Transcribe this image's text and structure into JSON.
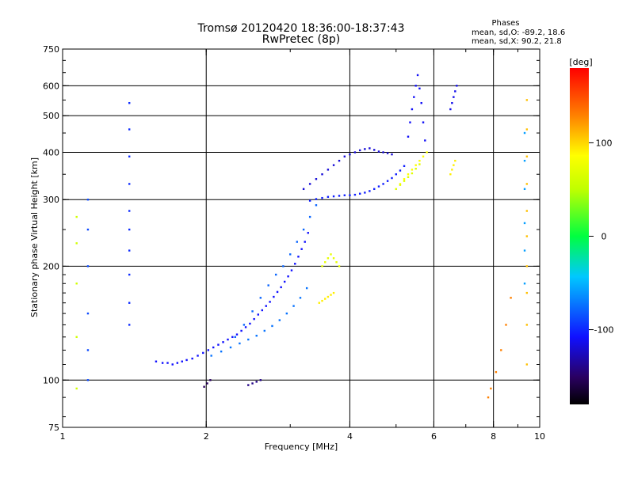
{
  "chart_data": {
    "type": "scatter",
    "title": "Tromsø 20120420 18:36:00-18:37:43",
    "subtitle": "RwPretec (8p)",
    "stats": {
      "heading": "Phases",
      "line_o": "mean, sd,O: -89.2, 18.6",
      "line_x": "mean, sd,X:  90.2, 21.8"
    },
    "xlabel": "Frequency [MHz]",
    "ylabel": "Stationary phase Virtual Height [km]",
    "x_scale": "log",
    "y_scale": "log",
    "xlim": [
      1,
      10
    ],
    "ylim": [
      75,
      750
    ],
    "x_ticks": [
      {
        "value": 1,
        "label": "1"
      },
      {
        "value": 2,
        "label": "2"
      },
      {
        "value": 4,
        "label": "4"
      },
      {
        "value": 6,
        "label": "6"
      },
      {
        "value": 8,
        "label": "8"
      },
      {
        "value": 10,
        "label": "10"
      }
    ],
    "y_ticks": [
      {
        "value": 75,
        "label": "75"
      },
      {
        "value": 100,
        "label": "100"
      },
      {
        "value": 200,
        "label": "200"
      },
      {
        "value": 300,
        "label": "300"
      },
      {
        "value": 400,
        "label": "400"
      },
      {
        "value": 500,
        "label": "500"
      },
      {
        "value": 600,
        "label": "600"
      },
      {
        "value": 750,
        "label": "750"
      }
    ],
    "grid_x": [
      2,
      4,
      6,
      8
    ],
    "grid_y": [
      100,
      200,
      300,
      400,
      500,
      600
    ],
    "grid": true,
    "colorbar": {
      "label": "[deg]",
      "range": [
        -180,
        180
      ],
      "ticks": [
        {
          "value": 100,
          "label": "100"
        },
        {
          "value": 0,
          "label": "0"
        },
        {
          "value": -100,
          "label": "-100"
        }
      ]
    },
    "series": [
      {
        "x": [
          1.57,
          1.62,
          1.66,
          1.7,
          1.74,
          1.78,
          1.82,
          1.87,
          1.92,
          1.97,
          2.02,
          2.07,
          2.12,
          2.17,
          2.22,
          2.27,
          2.32,
          2.37,
          2.42,
          2.47,
          2.52,
          2.57,
          2.62,
          2.67,
          2.72,
          2.77,
          2.82,
          2.87,
          2.92,
          2.97,
          3.02,
          3.07,
          3.12,
          3.17,
          3.22,
          3.27
        ],
        "y": [
          112,
          111,
          111,
          110,
          111,
          112,
          113,
          114,
          116,
          118,
          120,
          122,
          124,
          126,
          128,
          130,
          132,
          135,
          138,
          141,
          145,
          149,
          153,
          157,
          161,
          166,
          171,
          176,
          182,
          188,
          195,
          203,
          212,
          222,
          232,
          245
        ],
        "phase": -110
      },
      {
        "x": [
          2.05,
          2.15,
          2.25,
          2.35,
          2.45,
          2.55,
          2.65,
          2.75,
          2.85,
          2.95,
          3.05,
          3.15,
          3.25
        ],
        "y": [
          116,
          119,
          122,
          125,
          128,
          131,
          135,
          139,
          144,
          150,
          157,
          165,
          175
        ],
        "phase": -75
      },
      {
        "x": [
          2.3,
          2.4,
          2.5,
          2.6,
          2.7,
          2.8,
          2.9,
          3.0,
          3.1,
          3.2,
          3.3,
          3.4
        ],
        "y": [
          130,
          140,
          152,
          165,
          178,
          190,
          200,
          215,
          232,
          250,
          270,
          290
        ],
        "phase": -80
      },
      {
        "x": [
          3.3,
          3.4,
          3.5,
          3.6,
          3.7,
          3.8,
          3.9,
          4.0,
          4.1,
          4.2,
          4.3,
          4.4,
          4.5,
          4.6,
          4.7,
          4.8,
          4.9,
          5.0,
          5.1,
          5.2
        ],
        "y": [
          298,
          301,
          303,
          305,
          306,
          307,
          308,
          308,
          309,
          311,
          313,
          316,
          320,
          325,
          330,
          336,
          342,
          350,
          358,
          368
        ],
        "phase": -105
      },
      {
        "x": [
          3.2,
          3.3,
          3.4,
          3.5,
          3.6,
          3.7,
          3.8,
          3.9,
          4.0,
          4.1,
          4.2,
          4.3,
          4.4,
          4.5,
          4.6,
          4.7,
          4.8,
          4.9
        ],
        "y": [
          320,
          330,
          340,
          350,
          360,
          370,
          380,
          390,
          395,
          400,
          405,
          408,
          410,
          406,
          402,
          400,
          398,
          395
        ],
        "phase": -120
      },
      {
        "x": [
          5.3,
          5.35,
          5.4,
          5.45,
          5.5,
          5.55,
          5.6,
          5.65,
          5.7,
          5.75
        ],
        "y": [
          440,
          480,
          520,
          560,
          600,
          640,
          590,
          540,
          480,
          430
        ],
        "phase": -112
      },
      {
        "x": [
          5.1,
          5.2,
          5.3,
          5.4,
          5.5,
          5.6,
          5.7,
          5.8
        ],
        "y": [
          330,
          340,
          350,
          360,
          370,
          380,
          390,
          400
        ],
        "phase": 90
      },
      {
        "x": [
          5.0,
          5.1,
          5.2,
          5.3,
          5.4,
          5.5,
          5.6
        ],
        "y": [
          320,
          328,
          336,
          344,
          352,
          362,
          372
        ],
        "phase": 70
      },
      {
        "x": [
          3.45,
          3.5,
          3.55,
          3.6,
          3.65,
          3.7
        ],
        "y": [
          160,
          162,
          164,
          166,
          168,
          170
        ],
        "phase": 95
      },
      {
        "x": [
          3.5,
          3.55,
          3.6,
          3.65,
          3.7,
          3.75,
          3.8
        ],
        "y": [
          200,
          205,
          210,
          215,
          210,
          205,
          200
        ],
        "phase": 75
      },
      {
        "x": [
          6.5,
          6.55,
          6.6,
          6.65,
          6.7
        ],
        "y": [
          520,
          540,
          560,
          580,
          600
        ],
        "phase": -115
      },
      {
        "x": [
          6.5,
          6.55,
          6.6,
          6.65
        ],
        "y": [
          350,
          360,
          370,
          380
        ],
        "phase": 95
      },
      {
        "x": [
          9.4,
          9.4,
          9.4,
          9.4,
          9.4,
          9.4,
          9.4,
          9.4,
          9.4,
          9.4
        ],
        "y": [
          110,
          140,
          170,
          200,
          240,
          280,
          330,
          390,
          460,
          550
        ],
        "phase": 110
      },
      {
        "x": [
          9.3,
          9.3,
          9.3,
          9.3,
          9.3,
          9.3
        ],
        "y": [
          180,
          220,
          260,
          320,
          380,
          450
        ],
        "phase": -60
      },
      {
        "x": [
          1.38,
          1.38,
          1.38,
          1.38,
          1.38,
          1.38,
          1.38,
          1.38,
          1.38,
          1.38
        ],
        "y": [
          140,
          160,
          190,
          220,
          250,
          280,
          330,
          390,
          460,
          540
        ],
        "phase": -100
      },
      {
        "x": [
          1.13,
          1.13,
          1.13,
          1.13,
          1.13,
          1.13
        ],
        "y": [
          100,
          120,
          150,
          200,
          250,
          300
        ],
        "phase": -90
      },
      {
        "x": [
          1.07,
          1.07,
          1.07,
          1.07,
          1.07
        ],
        "y": [
          95,
          130,
          180,
          230,
          270
        ],
        "phase": 60
      },
      {
        "x": [
          2.45,
          2.5,
          2.55,
          2.6
        ],
        "y": [
          97,
          98,
          99,
          100
        ],
        "phase": -140
      },
      {
        "x": [
          1.98,
          2.01,
          2.04
        ],
        "y": [
          96,
          98,
          100
        ],
        "phase": -150
      },
      {
        "x": [
          7.8,
          7.9,
          8.1,
          8.3,
          8.5,
          8.7
        ],
        "y": [
          90,
          95,
          105,
          120,
          140,
          165
        ],
        "phase": 130
      }
    ]
  }
}
